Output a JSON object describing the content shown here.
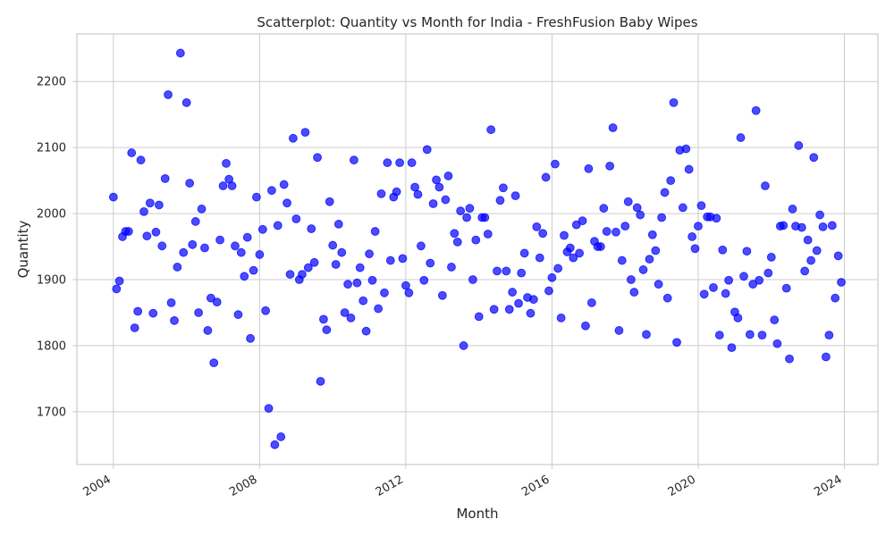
{
  "chart_data": {
    "type": "scatter",
    "title": "Scatterplot: Quantity vs Month for India - FreshFusion Baby Wipes",
    "xlabel": "Month",
    "ylabel": "Quantity",
    "x_scale": "date",
    "x_range": [
      "2003-01-01",
      "2024-12-01"
    ],
    "ylim": [
      1620,
      2272
    ],
    "grid": true,
    "legend": "none",
    "marker_color": "#0000ff",
    "x_ticks": [
      {
        "date": "2004-01-01",
        "label": "2004"
      },
      {
        "date": "2008-01-01",
        "label": "2008"
      },
      {
        "date": "2012-01-01",
        "label": "2012"
      },
      {
        "date": "2016-01-01",
        "label": "2016"
      },
      {
        "date": "2020-01-01",
        "label": "2020"
      },
      {
        "date": "2024-01-01",
        "label": "2024"
      }
    ],
    "y_ticks": [
      1700,
      1800,
      1900,
      2000,
      2100,
      2200
    ],
    "start_month": "2004-01",
    "quantities": [
      2025,
      1886,
      1898,
      1965,
      1973,
      1973,
      2092,
      1827,
      1852,
      2081,
      2003,
      1966,
      2016,
      1849,
      1972,
      2013,
      1951,
      2053,
      2180,
      1865,
      1838,
      1919,
      2243,
      1941,
      2168,
      2046,
      1953,
      1988,
      1850,
      2007,
      1948,
      1823,
      1872,
      1774,
      1866,
      1960,
      2042,
      2076,
      2052,
      2042,
      1951,
      1847,
      1941,
      1905,
      1964,
      1811,
      1914,
      2025,
      1938,
      1976,
      1853,
      1705,
      2035,
      1650,
      1982,
      1662,
      2044,
      2016,
      1908,
      2114,
      1992,
      1900,
      1908,
      2123,
      1918,
      1977,
      1926,
      2085,
      1746,
      1840,
      1824,
      2018,
      1952,
      1923,
      1984,
      1941,
      1850,
      1893,
      1842,
      2081,
      1895,
      1918,
      1868,
      1822,
      1939,
      1899,
      1973,
      1856,
      2030,
      1880,
      2077,
      1929,
      2025,
      2033,
      2077,
      1932,
      1891,
      1880,
      2077,
      2040,
      2029,
      1951,
      1899,
      2097,
      1925,
      2015,
      2051,
      2040,
      1876,
      2021,
      2057,
      1919,
      1970,
      1957,
      2004,
      1800,
      1994,
      2008,
      1900,
      1960,
      1844,
      1994,
      1994,
      1969,
      2127,
      1855,
      1913,
      2020,
      2039,
      1913,
      1855,
      1881,
      2027,
      1864,
      1910,
      1940,
      1873,
      1849,
      1870,
      1980,
      1933,
      1970,
      2055,
      1883,
      1903,
      2075,
      1917,
      1842,
      1967,
      1942,
      1948,
      1933,
      1983,
      1940,
      1989,
      1830,
      2068,
      1865,
      1958,
      1950,
      1950,
      2008,
      1973,
      2072,
      2130,
      1972,
      1823,
      1929,
      1981,
      2018,
      1900,
      1881,
      2009,
      1998,
      1915,
      1817,
      1931,
      1968,
      1944,
      1893,
      1994,
      2032,
      1872,
      2050,
      2168,
      1805,
      2096,
      2009,
      2098,
      2067,
      1965,
      1947,
      1981,
      2012,
      1878,
      1995,
      1995,
      1888,
      1993,
      1816,
      1945,
      1879,
      1899,
      1797,
      1851,
      1842,
      2115,
      1905,
      1943,
      1817,
      1893,
      2156,
      1899,
      1816,
      2042,
      1910,
      1934,
      1839,
      1803,
      1981,
      1982,
      1887,
      1780,
      2007,
      1981,
      2103,
      1979,
      1913,
      1960,
      1929,
      2085,
      1944,
      1998,
      1980,
      1783,
      1816,
      1982,
      1872,
      1936,
      1896
    ]
  }
}
